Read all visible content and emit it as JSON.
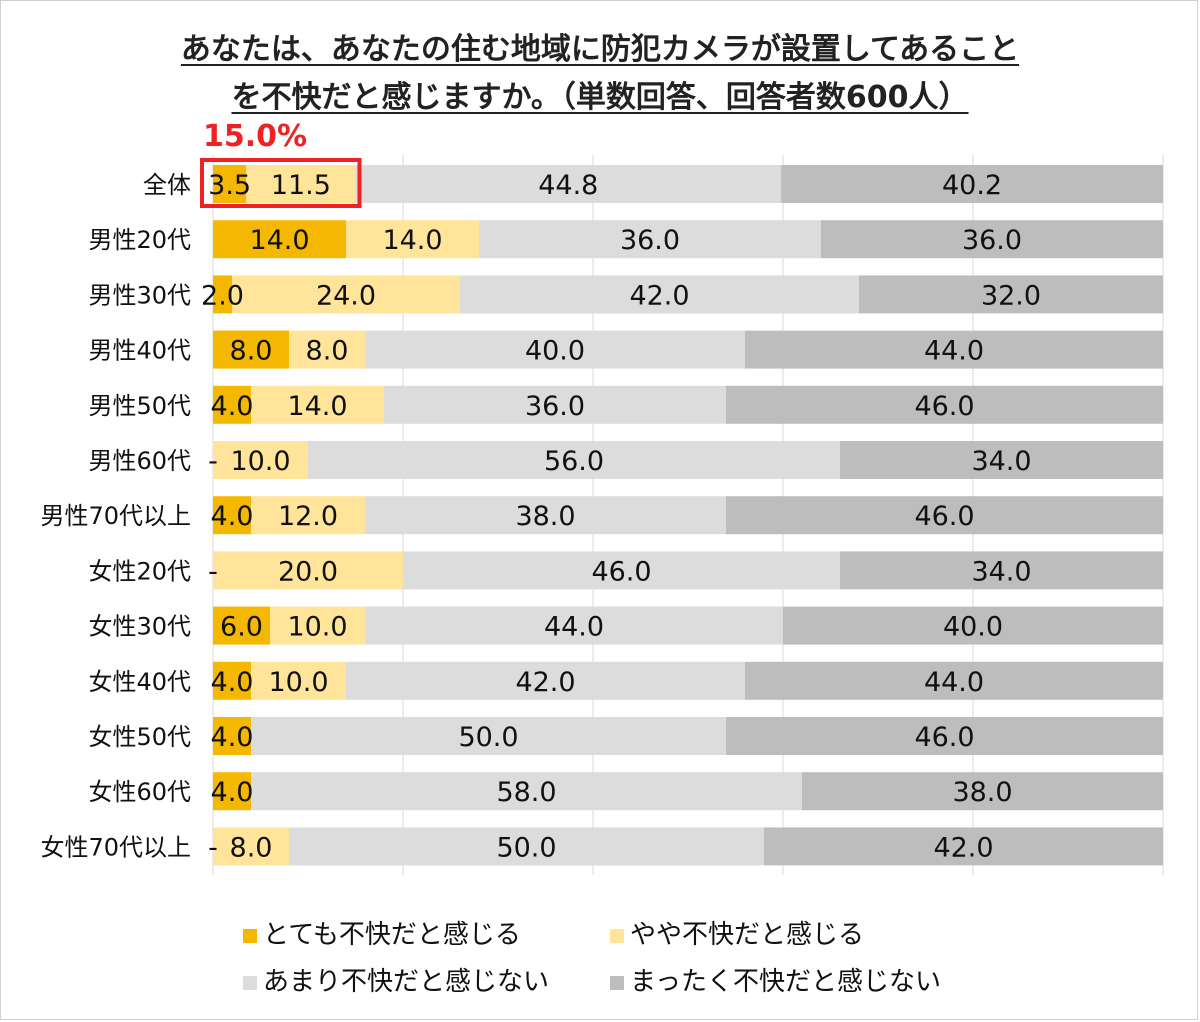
{
  "title": {
    "line1": "あなたは、あなたの住む地域に防犯カメラが設置してあること",
    "line2": "を不快だと感じますか。（単数回答、回答者数600人）"
  },
  "highlight": {
    "label": "15.0%",
    "color": "#ee2222"
  },
  "chart_data": {
    "type": "bar",
    "orientation": "horizontal",
    "stacked": "percent",
    "categories": [
      "全体",
      "男性20代",
      "男性30代",
      "男性40代",
      "男性50代",
      "男性60代",
      "男性70代以上",
      "女性20代",
      "女性30代",
      "女性40代",
      "女性50代",
      "女性60代",
      "女性70代以上"
    ],
    "series": [
      {
        "name": "とても不快だと感じる",
        "color": "#f5b800",
        "values": [
          3.5,
          14.0,
          2.0,
          8.0,
          4.0,
          0,
          4.0,
          0,
          6.0,
          4.0,
          4.0,
          4.0,
          0
        ],
        "labels": [
          "3.5",
          "14.0",
          "2.0",
          "8.0",
          "4.0",
          "-",
          "4.0",
          "-",
          "6.0",
          "4.0",
          "4.0",
          "4.0",
          "-"
        ]
      },
      {
        "name": "やや不快だと感じる",
        "color": "#ffe49a",
        "values": [
          11.5,
          14.0,
          24.0,
          8.0,
          14.0,
          10.0,
          12.0,
          20.0,
          10.0,
          10.0,
          0,
          0,
          8.0
        ],
        "labels": [
          "11.5",
          "14.0",
          "24.0",
          "8.0",
          "14.0",
          "10.0",
          "12.0",
          "20.0",
          "10.0",
          "10.0",
          "",
          "",
          "8.0"
        ]
      },
      {
        "name": "あまり不快だと感じない",
        "color": "#dcdcdc",
        "values": [
          44.8,
          36.0,
          42.0,
          40.0,
          36.0,
          56.0,
          38.0,
          46.0,
          44.0,
          42.0,
          50.0,
          58.0,
          50.0
        ],
        "labels": [
          "44.8",
          "36.0",
          "42.0",
          "40.0",
          "36.0",
          "56.0",
          "38.0",
          "46.0",
          "44.0",
          "42.0",
          "50.0",
          "58.0",
          "50.0"
        ]
      },
      {
        "name": "まったく不快だと感じない",
        "color": "#bdbdbd",
        "values": [
          40.2,
          36.0,
          32.0,
          44.0,
          46.0,
          34.0,
          46.0,
          34.0,
          40.0,
          44.0,
          46.0,
          38.0,
          42.0
        ],
        "labels": [
          "40.2",
          "36.0",
          "32.0",
          "44.0",
          "46.0",
          "34.0",
          "46.0",
          "34.0",
          "40.0",
          "44.0",
          "46.0",
          "38.0",
          "42.0"
        ]
      }
    ],
    "xlim": [
      0,
      100
    ],
    "grid": true,
    "legend_position": "bottom"
  }
}
